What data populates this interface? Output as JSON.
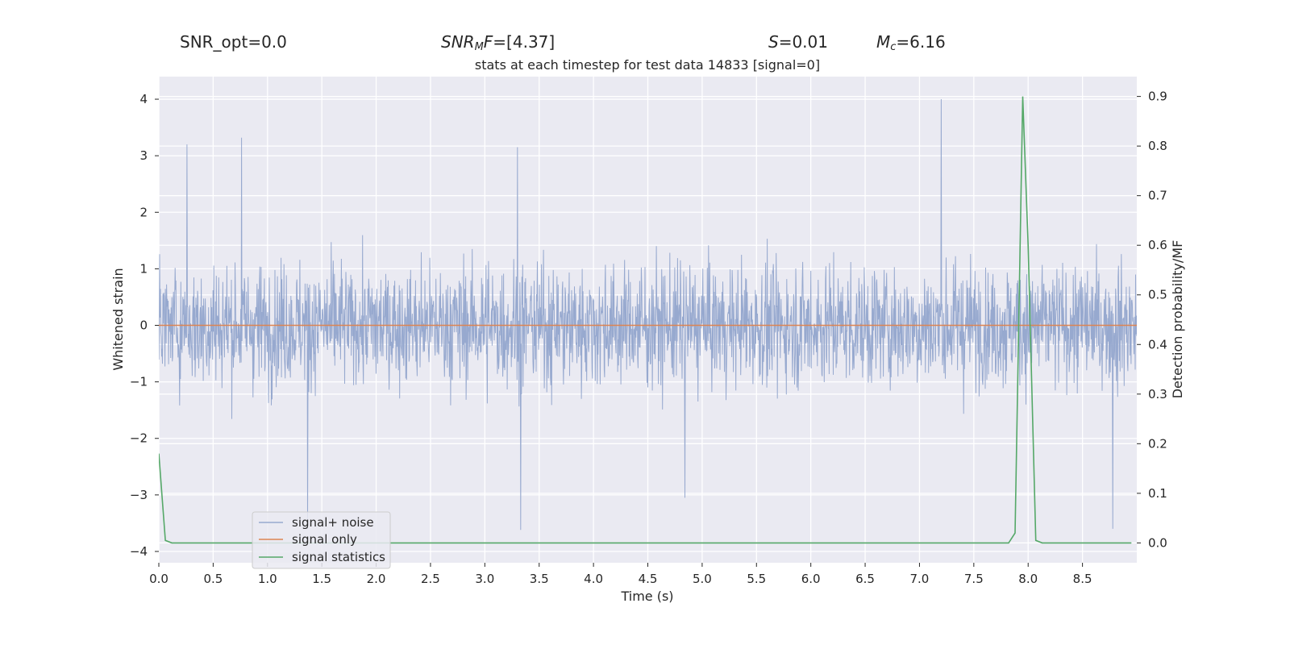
{
  "header": {
    "snr_opt": "SNR_opt=0.0",
    "snr_mf_prefix": "SNR",
    "snr_mf_sub": "M",
    "snr_mf_var": "F",
    "snr_mf_value": "=[4.37]",
    "s_var": "S",
    "s_value": "=0.01",
    "mc_var": "M",
    "mc_sub": "c",
    "mc_value": "=6.16"
  },
  "chart_data": {
    "type": "line",
    "title": "stats at each timestep for test data 14833 [signal=0]",
    "xlabel": "Time (s)",
    "ylabel": "Whitened strain",
    "ylabel_right": "Detection probability/MF",
    "xlim": [
      0,
      9.0
    ],
    "ylim": [
      -4.2,
      4.4
    ],
    "ylim_right": [
      -0.04,
      0.94
    ],
    "x_ticks": [
      "0.0",
      "0.5",
      "1.0",
      "1.5",
      "2.0",
      "2.5",
      "3.0",
      "3.5",
      "4.0",
      "4.5",
      "5.0",
      "5.5",
      "6.0",
      "6.5",
      "7.0",
      "7.5",
      "8.0",
      "8.5"
    ],
    "y_ticks": [
      "4",
      "3",
      "2",
      "1",
      "0",
      "−1",
      "−2",
      "−3",
      "−4"
    ],
    "y_ticks_right": [
      "0.9",
      "0.8",
      "0.7",
      "0.6",
      "0.5",
      "0.4",
      "0.3",
      "0.2",
      "0.1",
      "0.0"
    ],
    "grid": true,
    "legend_position": "lower-left",
    "series": [
      {
        "name": "signal+ noise",
        "color": "#97a9cf",
        "axis": "left",
        "description_values": "gaussian whitened noise, |y| mostly within ±1.5, peaks up to about ±3.3; notable spikes",
        "spikes": [
          [
            0.26,
            3.2
          ],
          [
            0.76,
            3.32
          ],
          [
            3.3,
            3.15
          ],
          [
            7.2,
            4.0
          ],
          [
            1.37,
            -3.6
          ],
          [
            3.33,
            -3.62
          ],
          [
            4.84,
            -3.05
          ],
          [
            8.78,
            -3.6
          ]
        ]
      },
      {
        "name": "signal only",
        "color": "#dd8452",
        "axis": "left",
        "x": [
          0,
          9.0
        ],
        "y": [
          0,
          0
        ]
      },
      {
        "name": "signal statistics",
        "color": "#55a868",
        "axis": "right",
        "x": [
          0.0,
          0.06,
          0.12,
          0.5,
          7.82,
          7.88,
          7.95,
          8.0,
          8.07,
          8.13,
          8.5,
          8.95
        ],
        "y": [
          0.18,
          0.005,
          0.0,
          0.0,
          0.0,
          0.02,
          0.9,
          0.6,
          0.005,
          0.0,
          0.0,
          0.0
        ]
      }
    ]
  }
}
